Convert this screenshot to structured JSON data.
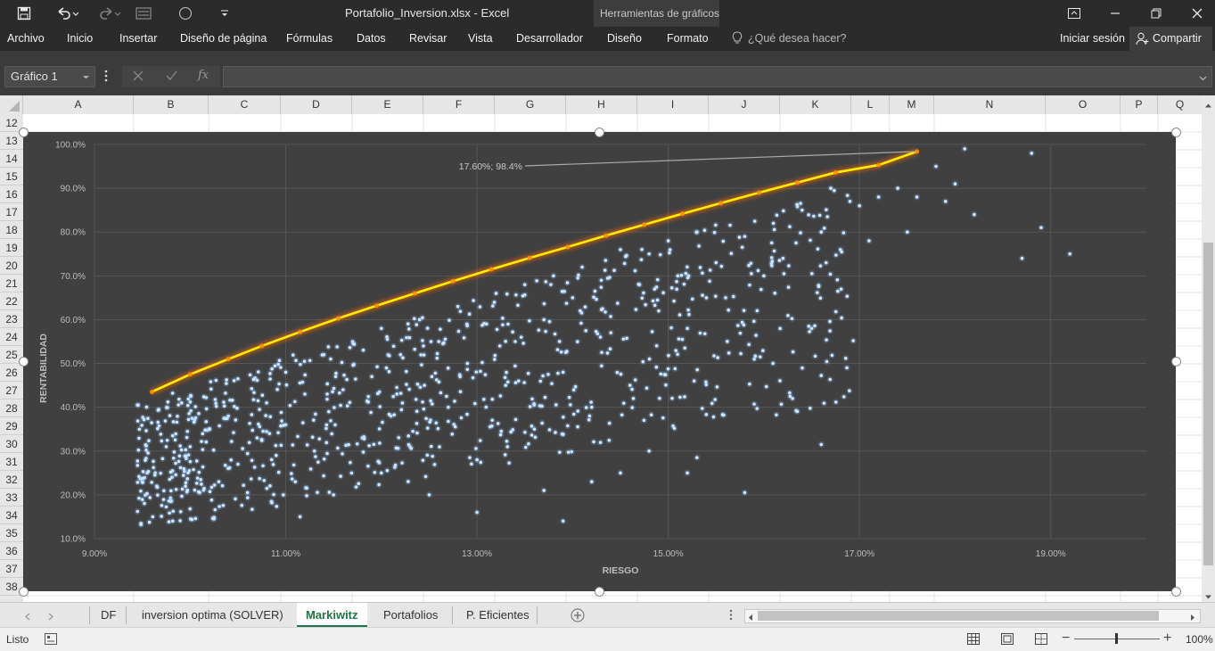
{
  "window": {
    "title": "Portafolio_Inversion.xlsx - Excel",
    "context_group": "Herramientas de gráficos"
  },
  "ribbon": {
    "tabs": [
      "Archivo",
      "Inicio",
      "Insertar",
      "Diseño de página",
      "Fórmulas",
      "Datos",
      "Revisar",
      "Vista",
      "Desarrollador",
      "Diseño",
      "Formato"
    ],
    "tell_me": "¿Qué desea hacer?",
    "sign_in": "Iniciar sesión",
    "share": "Compartir"
  },
  "formula_bar": {
    "name_box": "Gráfico 1",
    "fx": "fx",
    "content": ""
  },
  "columns": [
    "A",
    "B",
    "C",
    "D",
    "E",
    "F",
    "G",
    "H",
    "I",
    "J",
    "K",
    "L",
    "M",
    "N",
    "O",
    "P",
    "Q"
  ],
  "rows": [
    "12",
    "13",
    "14",
    "15",
    "16",
    "17",
    "18",
    "19",
    "20",
    "21",
    "22",
    "23",
    "24",
    "25",
    "26",
    "27",
    "28",
    "29",
    "30",
    "31",
    "32",
    "33",
    "34",
    "35",
    "36",
    "37",
    "38"
  ],
  "sheet_tabs": [
    "DF",
    "inversion optima (SOLVER)",
    "Markiwitz",
    "Portafolios",
    "P. Eficientes"
  ],
  "active_tab": "Markiwitz",
  "status": {
    "ready": "Listo",
    "zoom": "100%"
  },
  "colors": {
    "chart_bg": "#404040",
    "frontier": "#ffee00",
    "frontier_glow": "#ff6a00",
    "points": "#8cc4ff",
    "accent": "#217346"
  },
  "chart_data": {
    "type": "scatter",
    "title": "",
    "xlabel": "RIESGO",
    "ylabel": "RENTABILIDAD",
    "xlim": [
      0.09,
      0.2
    ],
    "ylim": [
      0.1,
      1.0
    ],
    "x_ticks": [
      "9.00%",
      "11.00%",
      "13.00%",
      "15.00%",
      "17.00%",
      "19.00%"
    ],
    "y_ticks": [
      "10.0%",
      "20.0%",
      "30.0%",
      "40.0%",
      "50.0%",
      "60.0%",
      "70.0%",
      "80.0%",
      "90.0%",
      "100.0%"
    ],
    "annotation": {
      "text": "17.60%; 98.4%",
      "x": 0.176,
      "y": 0.984
    },
    "frontier": {
      "x": [
        0.096,
        0.1,
        0.104,
        0.1075,
        0.1115,
        0.1155,
        0.1195,
        0.1235,
        0.1275,
        0.1315,
        0.1355,
        0.1395,
        0.1435,
        0.1475,
        0.1515,
        0.1555,
        0.1595,
        0.1635,
        0.1675,
        0.172,
        0.176
      ],
      "y": [
        0.435,
        0.475,
        0.51,
        0.54,
        0.572,
        0.603,
        0.632,
        0.66,
        0.688,
        0.715,
        0.741,
        0.766,
        0.792,
        0.817,
        0.842,
        0.866,
        0.89,
        0.913,
        0.936,
        0.953,
        0.984
      ]
    },
    "points": [
      [
        0.0945,
        0.405
      ],
      [
        0.0945,
        0.162
      ],
      [
        0.095,
        0.23
      ],
      [
        0.0955,
        0.25
      ],
      [
        0.0965,
        0.22
      ],
      [
        0.0975,
        0.31
      ],
      [
        0.098,
        0.185
      ],
      [
        0.099,
        0.262
      ],
      [
        0.1,
        0.168
      ],
      [
        0.1,
        0.31
      ],
      [
        0.101,
        0.205
      ],
      [
        0.102,
        0.35
      ],
      [
        0.1025,
        0.145
      ],
      [
        0.103,
        0.23
      ],
      [
        0.104,
        0.38
      ],
      [
        0.105,
        0.27
      ],
      [
        0.105,
        0.465
      ],
      [
        0.106,
        0.205
      ],
      [
        0.107,
        0.33
      ],
      [
        0.108,
        0.41
      ],
      [
        0.1085,
        0.185
      ],
      [
        0.109,
        0.29
      ],
      [
        0.11,
        0.48
      ],
      [
        0.11,
        0.36
      ],
      [
        0.111,
        0.23
      ],
      [
        0.1115,
        0.15
      ],
      [
        0.112,
        0.43
      ],
      [
        0.113,
        0.3
      ],
      [
        0.114,
        0.52
      ],
      [
        0.1145,
        0.39
      ],
      [
        0.115,
        0.2
      ],
      [
        0.116,
        0.44
      ],
      [
        0.117,
        0.55
      ],
      [
        0.118,
        0.33
      ],
      [
        0.119,
        0.47
      ],
      [
        0.12,
        0.58
      ],
      [
        0.12,
        0.25
      ],
      [
        0.121,
        0.38
      ],
      [
        0.122,
        0.52
      ],
      [
        0.123,
        0.31
      ],
      [
        0.124,
        0.6
      ],
      [
        0.1245,
        0.45
      ],
      [
        0.125,
        0.2
      ],
      [
        0.126,
        0.55
      ],
      [
        0.127,
        0.4
      ],
      [
        0.128,
        0.63
      ],
      [
        0.129,
        0.5
      ],
      [
        0.13,
        0.28
      ],
      [
        0.131,
        0.59
      ],
      [
        0.132,
        0.66
      ],
      [
        0.133,
        0.45
      ],
      [
        0.134,
        0.55
      ],
      [
        0.135,
        0.68
      ],
      [
        0.136,
        0.35
      ],
      [
        0.137,
        0.6
      ],
      [
        0.138,
        0.7
      ],
      [
        0.139,
        0.48
      ],
      [
        0.14,
        0.65
      ],
      [
        0.141,
        0.72
      ],
      [
        0.142,
        0.4
      ],
      [
        0.143,
        0.69
      ],
      [
        0.144,
        0.57
      ],
      [
        0.145,
        0.76
      ],
      [
        0.146,
        0.45
      ],
      [
        0.147,
        0.68
      ],
      [
        0.148,
        0.75
      ],
      [
        0.149,
        0.62
      ],
      [
        0.15,
        0.78
      ],
      [
        0.151,
        0.7
      ],
      [
        0.152,
        0.58
      ],
      [
        0.153,
        0.8
      ],
      [
        0.155,
        0.73
      ],
      [
        0.156,
        0.65
      ],
      [
        0.158,
        0.79
      ],
      [
        0.159,
        0.51
      ],
      [
        0.16,
        0.7
      ],
      [
        0.161,
        0.82
      ],
      [
        0.162,
        0.74
      ],
      [
        0.163,
        0.42
      ],
      [
        0.164,
        0.85
      ],
      [
        0.165,
        0.58
      ],
      [
        0.166,
        0.8
      ],
      [
        0.167,
        0.9
      ],
      [
        0.168,
        0.76
      ],
      [
        0.169,
        0.87
      ],
      [
        0.17,
        0.86
      ],
      [
        0.171,
        0.78
      ],
      [
        0.172,
        0.88
      ],
      [
        0.174,
        0.9
      ],
      [
        0.175,
        0.8
      ],
      [
        0.176,
        0.88
      ],
      [
        0.178,
        0.95
      ],
      [
        0.179,
        0.87
      ],
      [
        0.18,
        0.91
      ],
      [
        0.181,
        0.99
      ],
      [
        0.182,
        0.84
      ],
      [
        0.187,
        0.74
      ],
      [
        0.188,
        0.98
      ],
      [
        0.189,
        0.81
      ],
      [
        0.192,
        0.75
      ],
      [
        0.13,
        0.16
      ],
      [
        0.137,
        0.21
      ],
      [
        0.142,
        0.23
      ],
      [
        0.148,
        0.3
      ],
      [
        0.153,
        0.285
      ],
      [
        0.158,
        0.205
      ],
      [
        0.166,
        0.315
      ],
      [
        0.152,
        0.25
      ],
      [
        0.145,
        0.25
      ],
      [
        0.139,
        0.14
      ]
    ]
  }
}
